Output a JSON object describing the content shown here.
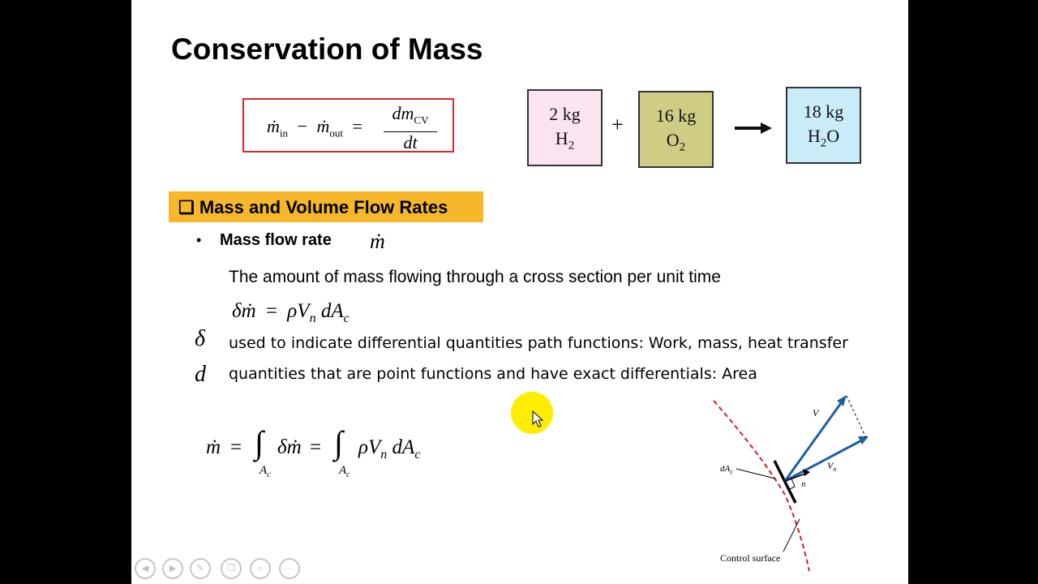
{
  "slide": {
    "title": "Conservation of Mass",
    "equation_box": {
      "m_dot": "ṁ",
      "in_sub": "in",
      "minus": "−",
      "out_sub": "out",
      "equals": "=",
      "numerator": "dm",
      "num_sub": "CV",
      "denominator": "dt"
    },
    "chemistry": {
      "h2": {
        "line1": "2 kg",
        "line2": "H",
        "sub": "2",
        "color": "#fbe3f1"
      },
      "plus": "+",
      "o2": {
        "line1": "16 kg",
        "line2": "O",
        "sub": "2",
        "color": "#cfcd84"
      },
      "h2o": {
        "line1": "18 kg",
        "line2a": "H",
        "sub": "2",
        "line2b": "O",
        "color": "#c9ecf8"
      }
    },
    "section_heading": {
      "checkbox": "❑",
      "label": "Mass and Volume Flow Rates"
    },
    "bullet": {
      "marker": "•",
      "label": "Mass flow rate",
      "symbol": "ṁ"
    },
    "definition": "The amount of mass flowing through a cross section per unit time",
    "diff_eq": {
      "lhs": "δṁ",
      "eq": "=",
      "rho": "ρ",
      "V": "V",
      "n": "n",
      "d": "dA",
      "c": "c"
    },
    "notes": [
      {
        "symbol": "δ",
        "text": "used to indicate differential quantities   path functions: Work, mass, heat transfer"
      },
      {
        "symbol": "d",
        "text": "quantities  that are point functions and have exact differentials: Area"
      }
    ],
    "integral_eq": {
      "m": "ṁ",
      "eq1": "=",
      "int1": "∫",
      "lim": "A",
      "limsub": "c",
      "dm": "δṁ",
      "eq2": "=",
      "int2": "∫",
      "rhoV": "ρV",
      "n": "n",
      "dA": "dA",
      "c": "c"
    },
    "diagram": {
      "V_label": "V",
      "Vn_label": "V",
      "Vn_sub": "n",
      "n_label": "n",
      "dA_label": "dA",
      "dA_sub": "c",
      "surface_label": "Control surface"
    },
    "accent_color": "#f6b82a",
    "eq_border_color": "#d9272e"
  },
  "toolbar": {
    "icons": [
      "back-icon",
      "forward-icon",
      "pen-icon",
      "slides-icon",
      "zoom-icon",
      "more-icon"
    ],
    "more": "···"
  }
}
